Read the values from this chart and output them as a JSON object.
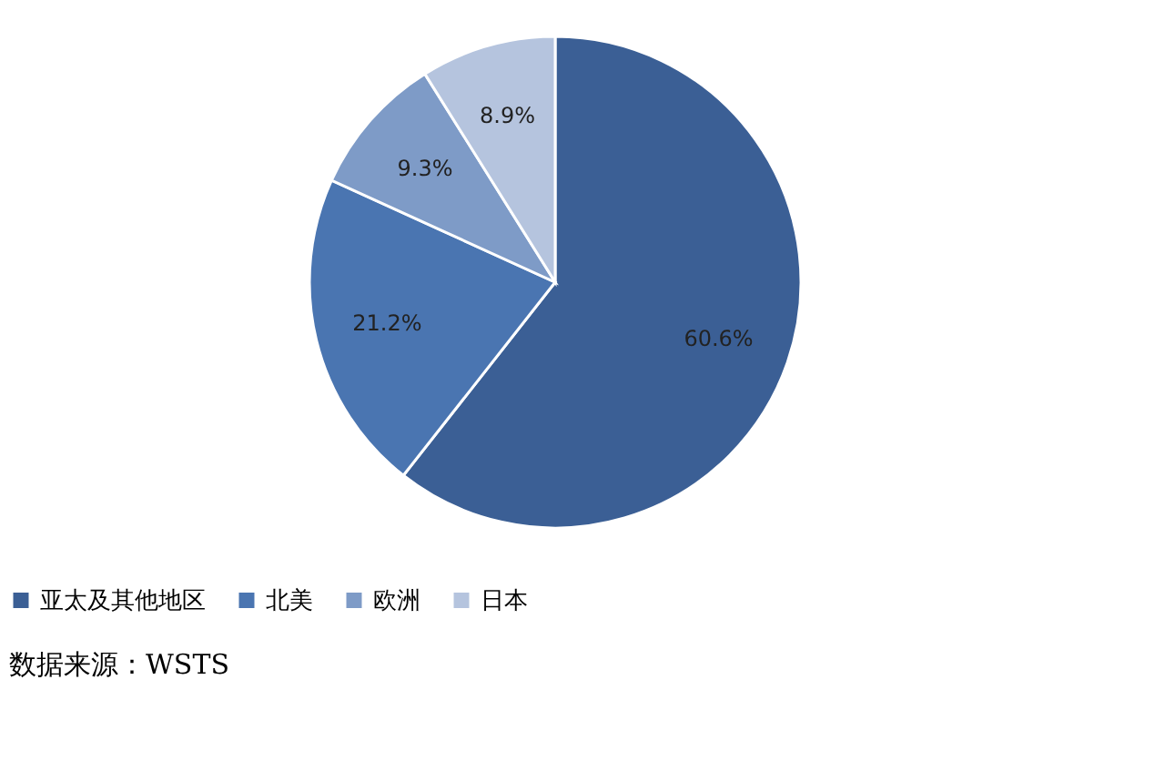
{
  "chart_data": {
    "type": "pie",
    "categories": [
      "亚太及其他地区",
      "北美",
      "欧洲",
      "日本"
    ],
    "values": [
      60.6,
      21.2,
      9.3,
      8.9
    ],
    "colors": [
      "#3b5f95",
      "#4a75b1",
      "#7e9bc7",
      "#b5c4de"
    ],
    "value_labels": [
      "60.6%",
      "21.2%",
      "9.3%",
      "8.9%"
    ],
    "legend": "bottom",
    "annotations": [
      "数据来源：WSTS"
    ]
  }
}
